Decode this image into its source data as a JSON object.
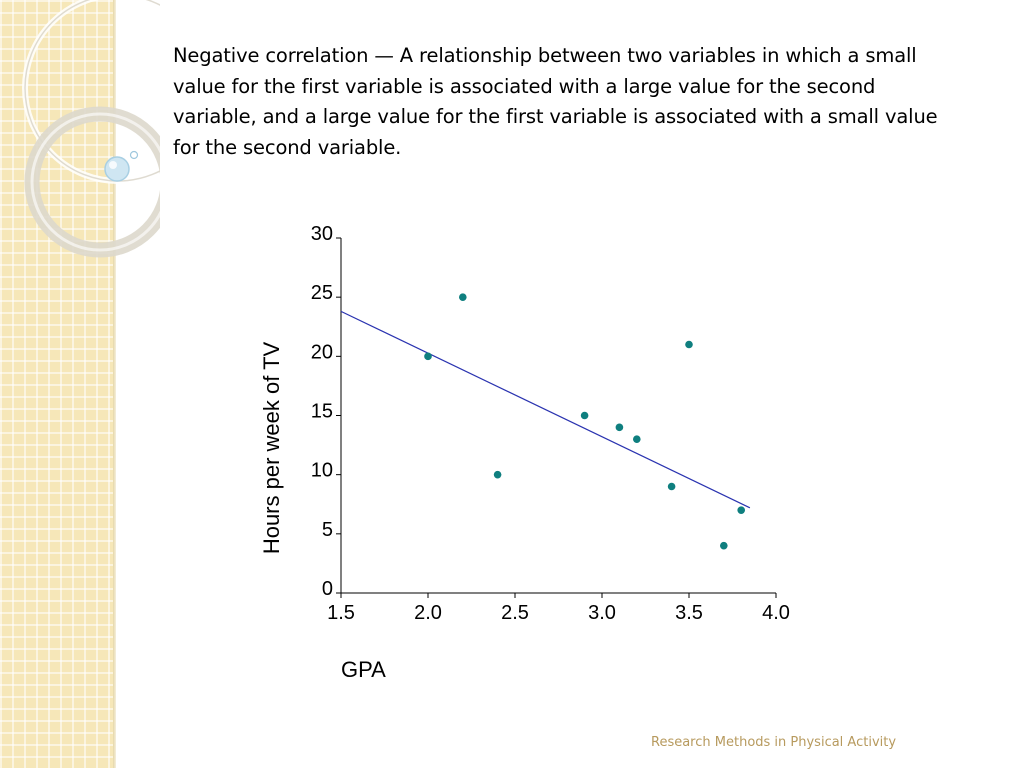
{
  "slide": {
    "definition": "Negative correlation — A relationship between two variables in which a small value for the first variable is associated with a large value for the second variable, and a large value for the first variable is associated with a small value for the second variable.",
    "footer": "Research Methods in Physical Activity"
  },
  "colors": {
    "point": "#0f7f7f",
    "trendline": "#2a33b0",
    "sidebar": "#f6e7b8",
    "footer_text": "#b79a5e"
  },
  "chart_data": {
    "type": "scatter",
    "xlabel": "GPA",
    "ylabel": "Hours per week of TV",
    "xlim": [
      1.5,
      4.0
    ],
    "ylim": [
      0,
      30
    ],
    "x_ticks": [
      "1.5",
      "2.0",
      "2.5",
      "3.0",
      "3.5",
      "4.0"
    ],
    "y_ticks": [
      "0",
      "5",
      "10",
      "15",
      "20",
      "25",
      "30"
    ],
    "grid": false,
    "legend": "none",
    "points": [
      {
        "x": 2.0,
        "y": 20
      },
      {
        "x": 2.2,
        "y": 25
      },
      {
        "x": 2.4,
        "y": 10
      },
      {
        "x": 2.9,
        "y": 15
      },
      {
        "x": 3.1,
        "y": 14
      },
      {
        "x": 3.2,
        "y": 13
      },
      {
        "x": 3.4,
        "y": 9
      },
      {
        "x": 3.5,
        "y": 21
      },
      {
        "x": 3.7,
        "y": 4
      },
      {
        "x": 3.8,
        "y": 7
      }
    ],
    "trendline": {
      "x": [
        1.5,
        3.85
      ],
      "y": [
        23.8,
        7.2
      ]
    }
  }
}
